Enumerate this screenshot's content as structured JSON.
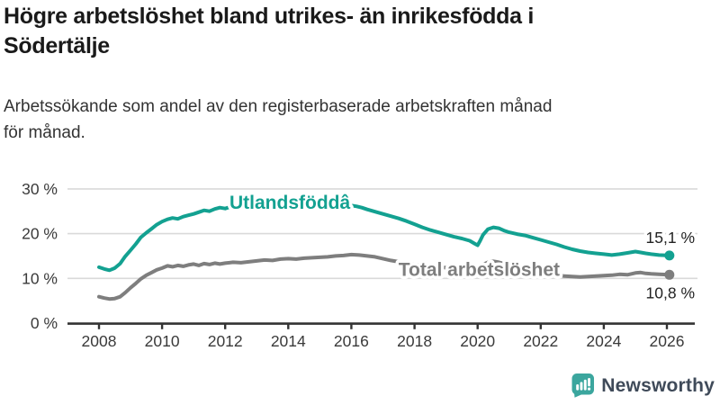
{
  "chart_data": {
    "type": "line",
    "title": "Högre arbetslöshet bland utrikes- än inrikesfödda i\nSödertälje",
    "subtitle": "Arbetssökande som andel av den registerbaserade arbetskraften månad\nför månad.",
    "unit": "%",
    "grid": true,
    "legend_position": "inline-labels",
    "xlim": [
      2007.9,
      2026.9
    ],
    "ylim": [
      0,
      32
    ],
    "x_ticks": [
      2008,
      2010,
      2012,
      2014,
      2016,
      2018,
      2020,
      2022,
      2024,
      2026
    ],
    "y_ticks": [
      {
        "value": 0,
        "label": "0 %"
      },
      {
        "value": 10,
        "label": "10 %"
      },
      {
        "value": 20,
        "label": "20 %"
      },
      {
        "value": 30,
        "label": "30 %"
      }
    ],
    "style": {
      "grid_color": "#d9d9d9",
      "axis_color": "#333333",
      "tick_label_color": "#3a3a3a",
      "value_label_color": "#222222"
    },
    "series": [
      {
        "id": "utlandsfodda",
        "name": "Utlandsföddâ",
        "color": "#13a191",
        "end_label": "15,1 %",
        "end_value": 15.1,
        "label_at": [
          2014.05,
          25.5
        ],
        "points": [
          [
            2008.0,
            12.5
          ],
          [
            2008.17,
            12.1
          ],
          [
            2008.33,
            11.8
          ],
          [
            2008.5,
            12.3
          ],
          [
            2008.67,
            13.3
          ],
          [
            2008.83,
            14.9
          ],
          [
            2009.0,
            16.3
          ],
          [
            2009.17,
            17.7
          ],
          [
            2009.33,
            19.2
          ],
          [
            2009.5,
            20.2
          ],
          [
            2009.67,
            21.1
          ],
          [
            2009.83,
            22.0
          ],
          [
            2010.0,
            22.7
          ],
          [
            2010.17,
            23.2
          ],
          [
            2010.33,
            23.5
          ],
          [
            2010.5,
            23.3
          ],
          [
            2010.67,
            23.8
          ],
          [
            2010.83,
            24.1
          ],
          [
            2011.0,
            24.4
          ],
          [
            2011.17,
            24.8
          ],
          [
            2011.33,
            25.2
          ],
          [
            2011.5,
            25.0
          ],
          [
            2011.67,
            25.5
          ],
          [
            2011.83,
            25.8
          ],
          [
            2012.0,
            25.6
          ],
          [
            2012.17,
            26.0
          ],
          [
            2012.33,
            26.3
          ],
          [
            2012.5,
            26.1
          ],
          [
            2012.67,
            26.4
          ],
          [
            2012.83,
            26.2
          ],
          [
            2013.0,
            26.5
          ],
          [
            2013.25,
            26.2
          ],
          [
            2013.5,
            26.4
          ],
          [
            2013.75,
            26.1
          ],
          [
            2014.0,
            26.3
          ],
          [
            2014.25,
            26.5
          ],
          [
            2014.5,
            26.2
          ],
          [
            2014.75,
            26.4
          ],
          [
            2015.0,
            26.6
          ],
          [
            2015.25,
            26.3
          ],
          [
            2015.5,
            26.5
          ],
          [
            2015.75,
            26.2
          ],
          [
            2016.0,
            26.3
          ],
          [
            2016.17,
            26.1
          ],
          [
            2016.33,
            25.8
          ],
          [
            2016.5,
            25.4
          ],
          [
            2016.75,
            24.9
          ],
          [
            2017.0,
            24.4
          ],
          [
            2017.25,
            23.9
          ],
          [
            2017.5,
            23.4
          ],
          [
            2017.75,
            22.8
          ],
          [
            2018.0,
            22.1
          ],
          [
            2018.25,
            21.4
          ],
          [
            2018.5,
            20.8
          ],
          [
            2018.75,
            20.3
          ],
          [
            2019.0,
            19.8
          ],
          [
            2019.25,
            19.3
          ],
          [
            2019.5,
            18.9
          ],
          [
            2019.75,
            18.4
          ],
          [
            2019.92,
            17.7
          ],
          [
            2020.0,
            17.4
          ],
          [
            2020.08,
            18.4
          ],
          [
            2020.17,
            19.7
          ],
          [
            2020.33,
            21.0
          ],
          [
            2020.5,
            21.4
          ],
          [
            2020.67,
            21.2
          ],
          [
            2020.83,
            20.7
          ],
          [
            2021.0,
            20.3
          ],
          [
            2021.25,
            19.9
          ],
          [
            2021.5,
            19.6
          ],
          [
            2021.75,
            19.1
          ],
          [
            2022.0,
            18.6
          ],
          [
            2022.25,
            18.1
          ],
          [
            2022.5,
            17.6
          ],
          [
            2022.75,
            17.0
          ],
          [
            2023.0,
            16.5
          ],
          [
            2023.25,
            16.1
          ],
          [
            2023.5,
            15.8
          ],
          [
            2023.75,
            15.6
          ],
          [
            2024.0,
            15.4
          ],
          [
            2024.25,
            15.2
          ],
          [
            2024.5,
            15.4
          ],
          [
            2024.75,
            15.7
          ],
          [
            2025.0,
            16.0
          ],
          [
            2025.17,
            15.8
          ],
          [
            2025.33,
            15.6
          ],
          [
            2025.5,
            15.4
          ],
          [
            2025.75,
            15.2
          ],
          [
            2026.08,
            15.1
          ]
        ]
      },
      {
        "id": "total",
        "name": "Total arbetslöshet",
        "color": "#7e7e7e",
        "end_label": "10,8 %",
        "end_value": 10.8,
        "label_at": [
          2020.05,
          10.6
        ],
        "points": [
          [
            2008.0,
            5.9
          ],
          [
            2008.17,
            5.6
          ],
          [
            2008.33,
            5.4
          ],
          [
            2008.5,
            5.5
          ],
          [
            2008.67,
            5.9
          ],
          [
            2008.83,
            6.8
          ],
          [
            2009.0,
            7.9
          ],
          [
            2009.17,
            8.9
          ],
          [
            2009.33,
            9.9
          ],
          [
            2009.5,
            10.7
          ],
          [
            2009.67,
            11.3
          ],
          [
            2009.83,
            11.9
          ],
          [
            2010.0,
            12.3
          ],
          [
            2010.17,
            12.8
          ],
          [
            2010.33,
            12.6
          ],
          [
            2010.5,
            12.9
          ],
          [
            2010.67,
            12.7
          ],
          [
            2010.83,
            13.0
          ],
          [
            2011.0,
            13.2
          ],
          [
            2011.17,
            12.9
          ],
          [
            2011.33,
            13.3
          ],
          [
            2011.5,
            13.1
          ],
          [
            2011.67,
            13.4
          ],
          [
            2011.83,
            13.2
          ],
          [
            2012.0,
            13.4
          ],
          [
            2012.25,
            13.6
          ],
          [
            2012.5,
            13.5
          ],
          [
            2012.75,
            13.7
          ],
          [
            2013.0,
            13.9
          ],
          [
            2013.25,
            14.1
          ],
          [
            2013.5,
            14.0
          ],
          [
            2013.75,
            14.3
          ],
          [
            2014.0,
            14.4
          ],
          [
            2014.25,
            14.3
          ],
          [
            2014.5,
            14.5
          ],
          [
            2014.75,
            14.6
          ],
          [
            2015.0,
            14.7
          ],
          [
            2015.25,
            14.8
          ],
          [
            2015.5,
            15.0
          ],
          [
            2015.75,
            15.1
          ],
          [
            2016.0,
            15.3
          ],
          [
            2016.25,
            15.2
          ],
          [
            2016.5,
            15.0
          ],
          [
            2016.75,
            14.8
          ],
          [
            2017.0,
            14.4
          ],
          [
            2017.25,
            14.0
          ],
          [
            2017.5,
            13.7
          ],
          [
            2017.75,
            13.4
          ],
          [
            2018.0,
            13.1
          ],
          [
            2018.25,
            12.9
          ],
          [
            2018.5,
            12.7
          ],
          [
            2018.75,
            12.5
          ],
          [
            2019.0,
            12.4
          ],
          [
            2019.25,
            12.3
          ],
          [
            2019.5,
            12.2
          ],
          [
            2019.75,
            12.3
          ],
          [
            2020.0,
            12.5
          ],
          [
            2020.17,
            13.1
          ],
          [
            2020.33,
            13.6
          ],
          [
            2020.5,
            13.8
          ],
          [
            2020.67,
            13.6
          ],
          [
            2020.83,
            13.3
          ],
          [
            2021.0,
            13.0
          ],
          [
            2021.25,
            12.7
          ],
          [
            2021.5,
            12.3
          ],
          [
            2021.75,
            11.9
          ],
          [
            2022.0,
            11.5
          ],
          [
            2022.25,
            11.1
          ],
          [
            2022.5,
            10.8
          ],
          [
            2022.75,
            10.5
          ],
          [
            2023.0,
            10.4
          ],
          [
            2023.25,
            10.3
          ],
          [
            2023.5,
            10.4
          ],
          [
            2023.75,
            10.5
          ],
          [
            2024.0,
            10.6
          ],
          [
            2024.25,
            10.7
          ],
          [
            2024.5,
            10.9
          ],
          [
            2024.75,
            10.8
          ],
          [
            2025.0,
            11.2
          ],
          [
            2025.17,
            11.3
          ],
          [
            2025.33,
            11.1
          ],
          [
            2025.5,
            11.0
          ],
          [
            2025.75,
            10.9
          ],
          [
            2026.08,
            10.8
          ]
        ]
      }
    ]
  },
  "branding": {
    "logo_text": "Newsworthy",
    "logo_color": "#3ba69e",
    "text_color": "#3f4a59",
    "icon": "bar-chart-speech-bubble-icon"
  }
}
